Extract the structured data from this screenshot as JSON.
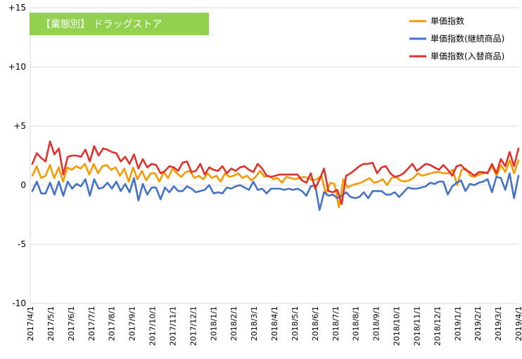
{
  "chart_data": {
    "type": "line",
    "title": "【業態別】 ドラッグストア",
    "title_bg": "#92d050",
    "ylim": [
      -10,
      15
    ],
    "yticks": [
      {
        "value": 15,
        "label": "+15"
      },
      {
        "value": 10,
        "label": "+10"
      },
      {
        "value": 5,
        "label": "+5"
      },
      {
        "value": 0,
        "label": "0"
      },
      {
        "value": -5,
        "label": "-5"
      },
      {
        "value": -10,
        "label": "-10"
      }
    ],
    "grid": true,
    "legend_position": "top-right",
    "xlabels": [
      "2017/4/1",
      "2017/5/1",
      "2017/6/1",
      "2017/7/1",
      "2017/8/1",
      "2017/9/1",
      "2017/10/1",
      "2017/11/1",
      "2017/12/1",
      "2018/1/1",
      "2018/2/1",
      "2018/3/1",
      "2018/4/1",
      "2018/5/1",
      "2018/6/1",
      "2018/7/1",
      "2018/8/1",
      "2018/9/1",
      "2018/10/1",
      "2018/11/1",
      "2018/12/1",
      "2019/1/1",
      "2019/2/1",
      "2019/3/1",
      "2019/4/1"
    ],
    "series": [
      {
        "name": "単価指数",
        "color": "#f59a00",
        "values": [
          0.8,
          1.6,
          0.6,
          0.8,
          1.7,
          0.6,
          1.5,
          0.3,
          1.5,
          1.3,
          1.6,
          1.4,
          1.8,
          0.9,
          1.8,
          1.0,
          1.6,
          1.7,
          1.3,
          1.5,
          0.8,
          1.4,
          0.3,
          1.5,
          0.5,
          1.2,
          0.4,
          1.0,
          1.0,
          0.3,
          1.1,
          0.6,
          1.4,
          1.0,
          0.7,
          1.1,
          1.2,
          0.6,
          0.8,
          0.5,
          1.0,
          0.6,
          0.8,
          0.3,
          1.0,
          0.7,
          0.8,
          1.0,
          0.6,
          0.8,
          0.4,
          0.7,
          1.2,
          0.7,
          0.8,
          0.5,
          0.6,
          0.2,
          0.7,
          0.6,
          0.5,
          0.6,
          0.7,
          0.6,
          0.4,
          0.5,
          0.8,
          -0.7,
          0.2,
          0.1,
          -1.9,
          0.5,
          -0.2,
          0.0,
          0.1,
          0.2,
          0.4,
          0.6,
          0.2,
          0.3,
          0.5,
          0.0,
          0.6,
          0.7,
          0.4,
          0.3,
          0.4,
          0.6,
          1.0,
          0.8,
          0.9,
          1.0,
          1.1,
          1.1,
          1.0,
          1.0,
          1.3,
          0.0,
          1.3,
          1.4,
          0.8,
          0.7,
          0.9,
          1.0,
          1.1,
          1.6,
          0.8,
          1.7,
          1.1,
          2.1,
          1.0,
          2.1
        ]
      },
      {
        "name": "単価指数(継続商品)",
        "color": "#4472c4",
        "values": [
          -0.5,
          0.3,
          -0.7,
          -0.7,
          0.2,
          -0.8,
          0.3,
          -0.9,
          0.3,
          -0.3,
          0.1,
          -0.1,
          0.5,
          -0.9,
          0.5,
          -0.3,
          -0.2,
          0.2,
          -0.3,
          0.3,
          -0.5,
          0.1,
          -0.6,
          0.6,
          -1.3,
          0.1,
          -0.8,
          -0.2,
          -0.2,
          -1.2,
          -0.2,
          -0.6,
          -0.1,
          -0.5,
          -0.5,
          -0.1,
          -0.3,
          -0.6,
          -0.5,
          -0.4,
          0.0,
          -0.7,
          -0.6,
          -0.7,
          -0.2,
          -0.3,
          -0.1,
          0.0,
          -0.2,
          -0.4,
          0.3,
          -0.4,
          -0.3,
          -0.7,
          -0.3,
          -0.3,
          -0.3,
          -0.4,
          -0.3,
          -0.4,
          -0.3,
          -0.5,
          -0.9,
          -0.1,
          0.0,
          -2.1,
          -0.6,
          -0.9,
          -0.8,
          -1.1,
          -0.9,
          -0.6,
          -1.0,
          -1.1,
          -1.0,
          -0.6,
          -1.1,
          -0.5,
          -0.5,
          -0.5,
          -0.8,
          -0.8,
          -0.6,
          -1.0,
          -0.6,
          -0.2,
          -0.3,
          -0.3,
          -0.2,
          -0.1,
          0.2,
          0.1,
          0.3,
          0.3,
          -0.8,
          -0.1,
          0.2,
          0.4,
          -0.5,
          0.1,
          0.0,
          0.2,
          0.3,
          0.5,
          -0.6,
          0.7,
          0.6,
          -0.4,
          1.0,
          -1.1,
          0.8
        ]
      },
      {
        "name": "単価指数(入替商品)",
        "color": "#e0312b",
        "values": [
          1.8,
          2.7,
          2.3,
          2.0,
          3.7,
          2.6,
          3.1,
          0.9,
          2.4,
          2.5,
          2.5,
          2.4,
          3.0,
          2.0,
          3.3,
          2.5,
          3.1,
          3.0,
          2.8,
          2.7,
          2.0,
          2.4,
          1.8,
          2.6,
          1.4,
          2.2,
          1.5,
          1.8,
          1.7,
          1.0,
          1.2,
          1.6,
          1.5,
          1.2,
          1.9,
          2.0,
          1.1,
          1.2,
          1.8,
          0.9,
          1.5,
          1.3,
          1.2,
          1.6,
          1.0,
          1.4,
          1.2,
          1.5,
          1.6,
          1.3,
          1.1,
          1.8,
          1.4,
          0.8,
          0.7,
          0.8,
          0.9,
          0.9,
          0.9,
          0.9,
          0.9,
          0.4,
          0.2,
          1.0,
          -0.3,
          0.5,
          1.4,
          -0.5,
          -0.6,
          -0.4,
          -1.6,
          0.8,
          1.0,
          1.3,
          1.6,
          1.8,
          1.8,
          1.9,
          1.0,
          1.5,
          1.6,
          1.0,
          0.7,
          0.8,
          1.0,
          1.4,
          1.8,
          1.2,
          1.5,
          1.8,
          1.7,
          1.5,
          1.3,
          1.7,
          1.3,
          0.8,
          1.6,
          1.7,
          1.3,
          1.1,
          0.8,
          1.1,
          1.1,
          1.0,
          1.8,
          1.0,
          2.2,
          1.6,
          2.8,
          1.6,
          3.1
        ]
      }
    ]
  }
}
